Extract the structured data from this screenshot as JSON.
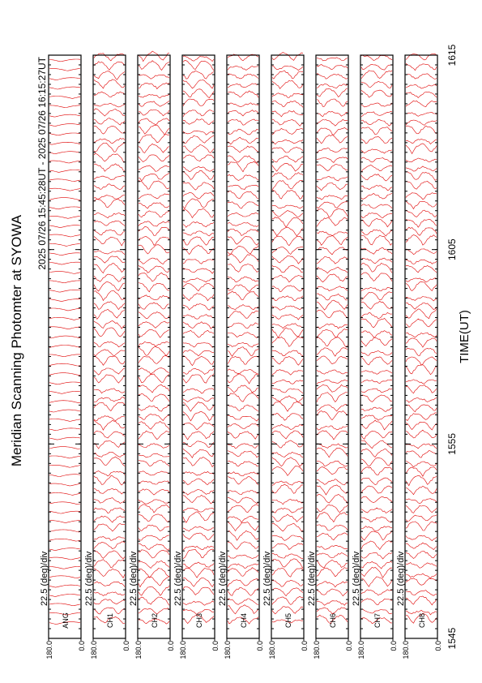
{
  "chart_data": {
    "type": "scan",
    "title": "Meridian Scanning Photomter at SYOWA",
    "subtitle": "2025 07/26 15:45:28UT - 2025 07/26 16:15:27UT",
    "xlabel": "TIME(UT)",
    "xlim": [
      945,
      975
    ],
    "xticks": [
      {
        "value": 945,
        "label": "1545"
      },
      {
        "value": 955,
        "label": "1555"
      },
      {
        "value": 965,
        "label": "1605"
      },
      {
        "value": 975,
        "label": "1615"
      }
    ],
    "scale_label": "22.5 (deg)/div",
    "ylim": [
      0,
      180
    ],
    "yticks": [
      {
        "value": 180,
        "label": "180.0"
      },
      {
        "value": 0,
        "label": "0.0"
      }
    ],
    "color": "#e00000",
    "panels": [
      "ANG",
      "CH1",
      "CH2",
      "CH3",
      "CH4",
      "CH5",
      "CH6",
      "CH7",
      "CH8"
    ]
  }
}
